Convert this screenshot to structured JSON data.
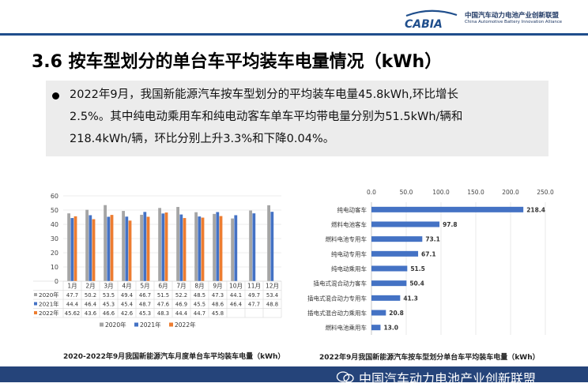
{
  "header": {
    "logo_text": "CABIA",
    "org_cn": "中国汽车动力电池产业创新联盟",
    "org_en": "China Automotive Battery Innovation Alliance"
  },
  "title": "3.6 按车型划分的单台车平均装车电量情况（kWh）",
  "bullet": {
    "line1": "2022年9月，我国新能源汽车按车型划分的平均装车电量45.8kWh,环比增长",
    "line2": "2.5%。其中纯电动乘用车和纯电动客车单车平均带电量分别为51.5kWh/辆和",
    "line3": "218.4kWh/辆，环比分别上升3.3%和下降0.04%。"
  },
  "chart_data": [
    {
      "type": "bar",
      "title": "2020-2022年9月我国新能源汽车月度单台车平均装车电量（kWh）",
      "categories": [
        "1月",
        "2月",
        "3月",
        "4月",
        "5月",
        "6月",
        "7月",
        "8月",
        "9月",
        "10月",
        "11月",
        "12月"
      ],
      "ylim": [
        0,
        60
      ],
      "yticks": [
        0,
        10,
        20,
        30,
        40,
        50,
        60
      ],
      "grid": true,
      "legend": "bottom",
      "series": [
        {
          "name": "2020年",
          "color": "#a5a5a5",
          "values": [
            47.7,
            50.2,
            53.5,
            49.4,
            46.7,
            51.5,
            52.2,
            48.5,
            47.3,
            44.1,
            49.7,
            53.4
          ]
        },
        {
          "name": "2021年",
          "color": "#4472c4",
          "values": [
            44.4,
            46.4,
            45.3,
            45.4,
            48.7,
            47.6,
            46.9,
            45.5,
            48.6,
            46.4,
            47.7,
            48.8
          ]
        },
        {
          "name": "2022年",
          "color": "#ed7d31",
          "values": [
            45.62,
            43.6,
            46.6,
            42.6,
            45.3,
            48.3,
            44.4,
            44.7,
            45.8,
            null,
            null,
            null
          ]
        }
      ],
      "table_values": {
        "2020年": [
          "47.7",
          "50.2",
          "53.5",
          "49.4",
          "46.7",
          "51.5",
          "52.2",
          "48.5",
          "47.3",
          "44.1",
          "49.7",
          "53.4"
        ],
        "2021年": [
          "44.4",
          "46.4",
          "45.3",
          "45.4",
          "48.7",
          "47.6",
          "46.9",
          "45.5",
          "48.6",
          "46.4",
          "47.7",
          "48.8"
        ],
        "2022年": [
          "45.62",
          "43.6",
          "46.6",
          "42.6",
          "45.3",
          "48.3",
          "44.4",
          "44.7",
          "45.8",
          "",
          "",
          ""
        ]
      }
    },
    {
      "type": "bar",
      "orientation": "horizontal",
      "title": "2022年9月我国新能源汽车按车型划分单台车平均装车电量（kWh）",
      "categories": [
        "纯电动客车",
        "燃料电池客车",
        "燃料电池专用车",
        "纯电动专用车",
        "纯电动乘用车",
        "插电式混合动力客车",
        "插电式混合动力专用车",
        "插电式混合动力乘用车",
        "燃料电池乘用车"
      ],
      "values": [
        218.4,
        97.8,
        73.1,
        67.1,
        51.5,
        50.4,
        41.3,
        20.8,
        13.0
      ],
      "value_labels": [
        "218.4",
        "97.8",
        "73.1",
        "67.1",
        "51.5",
        "50.4",
        "41.3",
        "20.8",
        "13.0"
      ],
      "xlim": [
        0,
        250
      ],
      "xticks": [
        "0.0",
        "50.0",
        "100.0",
        "150.0",
        "200.0",
        "250.0"
      ],
      "color": "#4472c4",
      "grid": true
    }
  ],
  "footer": {
    "text": "中国汽车动力电池产业创新联盟"
  }
}
